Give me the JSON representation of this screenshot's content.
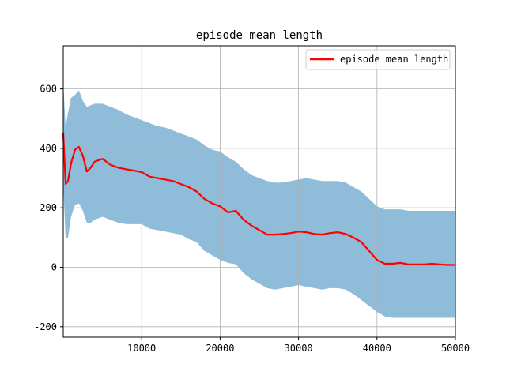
{
  "chart_data": {
    "type": "line",
    "title": "episode mean length",
    "xlabel": "",
    "ylabel": "",
    "xlim": [
      0,
      50000
    ],
    "ylim": [
      -235,
      745
    ],
    "xticks": [
      10000,
      20000,
      30000,
      40000,
      50000
    ],
    "yticks": [
      -200,
      0,
      200,
      400,
      600
    ],
    "grid": true,
    "legend_position": "top-right",
    "series": [
      {
        "name": "episode mean length",
        "color": "#ff0000",
        "x": [
          0,
          300,
          600,
          1000,
          1500,
          2000,
          2500,
          3000,
          3500,
          4000,
          5000,
          6000,
          7000,
          8000,
          9000,
          10000,
          11000,
          12000,
          13000,
          14000,
          15000,
          16000,
          17000,
          18000,
          19000,
          20000,
          21000,
          22000,
          23000,
          24000,
          25000,
          26000,
          27000,
          28000,
          29000,
          30000,
          31000,
          32000,
          33000,
          34000,
          35000,
          36000,
          37000,
          38000,
          39000,
          40000,
          41000,
          42000,
          43000,
          44000,
          45000,
          46000,
          47000,
          48000,
          49000,
          50000
        ],
        "y": [
          450,
          280,
          290,
          350,
          395,
          405,
          375,
          322,
          335,
          355,
          365,
          345,
          335,
          330,
          325,
          320,
          305,
          300,
          295,
          290,
          280,
          270,
          255,
          230,
          215,
          205,
          185,
          190,
          160,
          140,
          125,
          110,
          110,
          112,
          115,
          120,
          118,
          112,
          110,
          115,
          118,
          112,
          100,
          85,
          55,
          25,
          12,
          12,
          15,
          10,
          10,
          10,
          12,
          10,
          8,
          8
        ]
      }
    ],
    "band": {
      "color": "#8fbcd9",
      "x": [
        0,
        300,
        600,
        1000,
        1500,
        2000,
        2500,
        3000,
        3500,
        4000,
        5000,
        6000,
        7000,
        8000,
        9000,
        10000,
        11000,
        12000,
        13000,
        14000,
        15000,
        16000,
        17000,
        18000,
        19000,
        20000,
        21000,
        22000,
        23000,
        24000,
        25000,
        26000,
        27000,
        28000,
        29000,
        30000,
        31000,
        32000,
        33000,
        34000,
        35000,
        36000,
        37000,
        38000,
        39000,
        40000,
        41000,
        42000,
        43000,
        44000,
        45000,
        46000,
        47000,
        48000,
        49000,
        50000
      ],
      "upper": [
        620,
        470,
        520,
        570,
        580,
        595,
        560,
        540,
        545,
        550,
        550,
        540,
        530,
        515,
        505,
        495,
        485,
        475,
        470,
        460,
        450,
        440,
        430,
        410,
        395,
        390,
        370,
        355,
        330,
        310,
        300,
        290,
        285,
        285,
        290,
        295,
        300,
        295,
        290,
        290,
        290,
        285,
        270,
        255,
        230,
        205,
        195,
        195,
        195,
        190,
        190,
        190,
        190,
        190,
        190,
        190
      ],
      "lower": [
        280,
        95,
        100,
        170,
        210,
        215,
        190,
        150,
        150,
        160,
        170,
        160,
        150,
        145,
        145,
        145,
        130,
        125,
        120,
        115,
        110,
        95,
        85,
        55,
        40,
        25,
        15,
        10,
        -20,
        -40,
        -55,
        -70,
        -75,
        -70,
        -65,
        -60,
        -65,
        -70,
        -75,
        -70,
        -70,
        -75,
        -90,
        -110,
        -130,
        -150,
        -165,
        -170,
        -170,
        -170,
        -170,
        -170,
        -170,
        -170,
        -170,
        -170
      ]
    }
  }
}
